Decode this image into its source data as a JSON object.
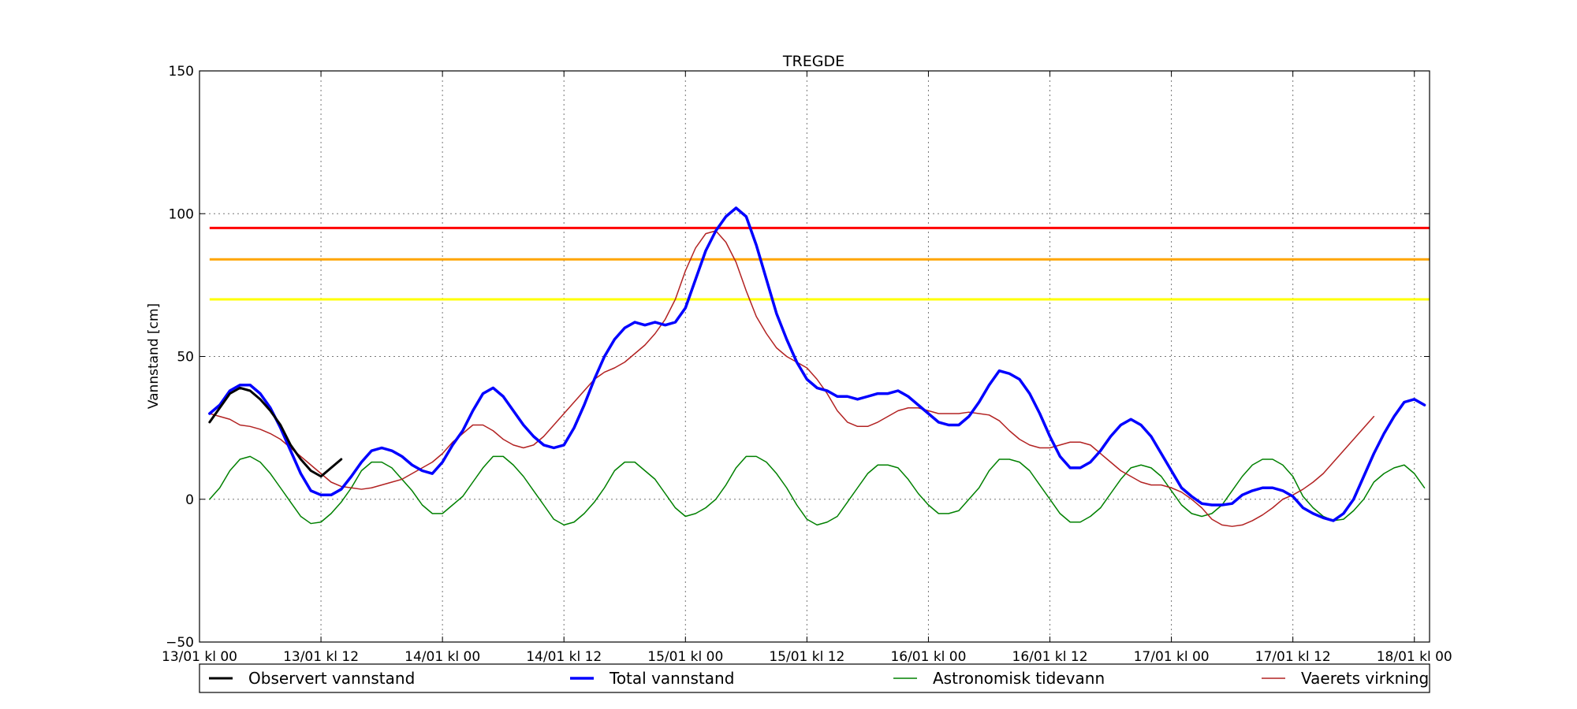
{
  "chart_data": {
    "type": "line",
    "title": "TREGDE",
    "ylabel": "Vannstand [cm]",
    "xlabel": "",
    "xlim": [
      -1,
      120.5
    ],
    "ylim": [
      -50,
      150
    ],
    "y_ticks": [
      -50,
      0,
      50,
      100,
      150
    ],
    "x_ticks": [
      {
        "hour": -1,
        "label": "13/01 kl 00"
      },
      {
        "hour": 11,
        "label": "13/01 kl 12"
      },
      {
        "hour": 23,
        "label": "14/01 kl 00"
      },
      {
        "hour": 35,
        "label": "14/01 kl 12"
      },
      {
        "hour": 47,
        "label": "15/01 kl 00"
      },
      {
        "hour": 59,
        "label": "15/01 kl 12"
      },
      {
        "hour": 71,
        "label": "16/01 kl 00"
      },
      {
        "hour": 83,
        "label": "16/01 kl 12"
      },
      {
        "hour": 95,
        "label": "17/01 kl 00"
      },
      {
        "hour": 107,
        "label": "17/01 kl 12"
      },
      {
        "hour": 119,
        "label": "18/01 kl 00"
      }
    ],
    "grid": true,
    "thresholds": [
      {
        "value": 95,
        "color": "#ff0000"
      },
      {
        "value": 84,
        "color": "#ffa500"
      },
      {
        "value": 70,
        "color": "#ffff00"
      }
    ],
    "series": [
      {
        "name": "Observert vannstand",
        "color": "#000000",
        "width": 3,
        "x_start": 0,
        "values": [
          27,
          32,
          37,
          39,
          38,
          35,
          31,
          26,
          19,
          14,
          10,
          8,
          11,
          14
        ]
      },
      {
        "name": "Total vannstand",
        "color": "#0000ff",
        "width": 3.5,
        "x_start": 0,
        "values": [
          30,
          33,
          38,
          40,
          40,
          37,
          32,
          25,
          17,
          9,
          3,
          1.5,
          1.5,
          3.5,
          8,
          13,
          17,
          18,
          17,
          15,
          12,
          10,
          9,
          13,
          19,
          24,
          31,
          37,
          39,
          36,
          31,
          26,
          22,
          19,
          18,
          19,
          25,
          33,
          42,
          50,
          56,
          60,
          62,
          61,
          62,
          61,
          62,
          67,
          77,
          87,
          94,
          99,
          102,
          99,
          89,
          77,
          65,
          56,
          48,
          42,
          39,
          38,
          36,
          36,
          35,
          36,
          37,
          37,
          38,
          36,
          33,
          30,
          27,
          26,
          26,
          29,
          34,
          40,
          45,
          44,
          42,
          37,
          30,
          22,
          15,
          11,
          11,
          13,
          17,
          22,
          26,
          28,
          26,
          22,
          16,
          10,
          4,
          1,
          -1.5,
          -2,
          -2,
          -1.5,
          1.5,
          3,
          4,
          4,
          3,
          1,
          -3,
          -5,
          -6.5,
          -7.5,
          -5,
          0,
          8,
          16,
          23,
          29,
          34,
          35,
          33
        ]
      },
      {
        "name": "Astronomisk tidevann",
        "color": "#008000",
        "width": 1.5,
        "x_start": 0,
        "values": [
          0,
          4,
          10,
          14,
          15,
          13,
          9,
          4,
          -1,
          -6,
          -8.5,
          -8,
          -5,
          -1,
          4,
          10,
          13,
          13,
          11,
          7,
          3,
          -2,
          -5,
          -5,
          -2,
          1,
          6,
          11,
          15,
          15,
          12,
          8,
          3,
          -2,
          -7,
          -9,
          -8,
          -5,
          -1,
          4,
          10,
          13,
          13,
          10,
          7,
          2,
          -3,
          -6,
          -5,
          -3,
          0,
          5,
          11,
          15,
          15,
          13,
          9,
          4,
          -2,
          -7,
          -9,
          -8,
          -6,
          -1,
          4,
          9,
          12,
          12,
          11,
          7,
          2,
          -2,
          -5,
          -5,
          -4,
          0,
          4,
          10,
          14,
          14,
          13,
          10,
          5,
          0,
          -5,
          -8,
          -8,
          -6,
          -3,
          2,
          7,
          11,
          12,
          11,
          8,
          3,
          -2,
          -5,
          -6,
          -5,
          -2,
          3,
          8,
          12,
          14,
          14,
          12,
          8,
          1,
          -3,
          -6,
          -7.5,
          -7,
          -4,
          0,
          6,
          9,
          11,
          12,
          9,
          4
        ]
      },
      {
        "name": "Vaerets virkning",
        "color": "#b22222",
        "width": 1.5,
        "x_start": 0,
        "values": [
          30,
          29,
          28,
          26,
          25.5,
          24.5,
          23,
          21,
          18,
          15,
          12,
          9,
          6,
          4.5,
          4,
          3.5,
          4,
          5,
          6,
          7,
          9,
          11,
          13,
          16,
          20,
          23,
          26,
          26,
          24,
          21,
          19,
          18,
          19,
          22,
          26,
          30,
          34,
          38,
          42,
          44.5,
          46,
          48,
          51,
          54,
          58,
          63,
          70,
          80,
          88,
          93,
          94,
          90,
          83,
          73,
          64,
          58,
          53,
          50,
          48,
          46,
          42,
          37,
          31,
          27,
          25.5,
          25.5,
          27,
          29,
          31,
          32,
          32,
          31,
          30,
          30,
          30,
          30.5,
          30,
          29.5,
          27.5,
          24,
          21,
          19,
          18,
          18,
          19,
          20,
          20,
          19,
          16,
          13,
          10,
          8,
          6,
          5,
          5,
          4,
          2.5,
          0,
          -3,
          -7,
          -9,
          -9.5,
          -9,
          -7.5,
          -5.5,
          -3,
          0,
          1.5,
          3.5,
          6,
          9,
          13,
          17,
          21,
          25,
          29
        ]
      }
    ],
    "legend": {
      "placement": "bottom",
      "items": [
        {
          "label": "Observert vannstand",
          "color": "#000000"
        },
        {
          "label": "Total vannstand",
          "color": "#0000ff"
        },
        {
          "label": "Astronomisk tidevann",
          "color": "#008000"
        },
        {
          "label": "Vaerets virkning",
          "color": "#b22222"
        }
      ]
    }
  }
}
